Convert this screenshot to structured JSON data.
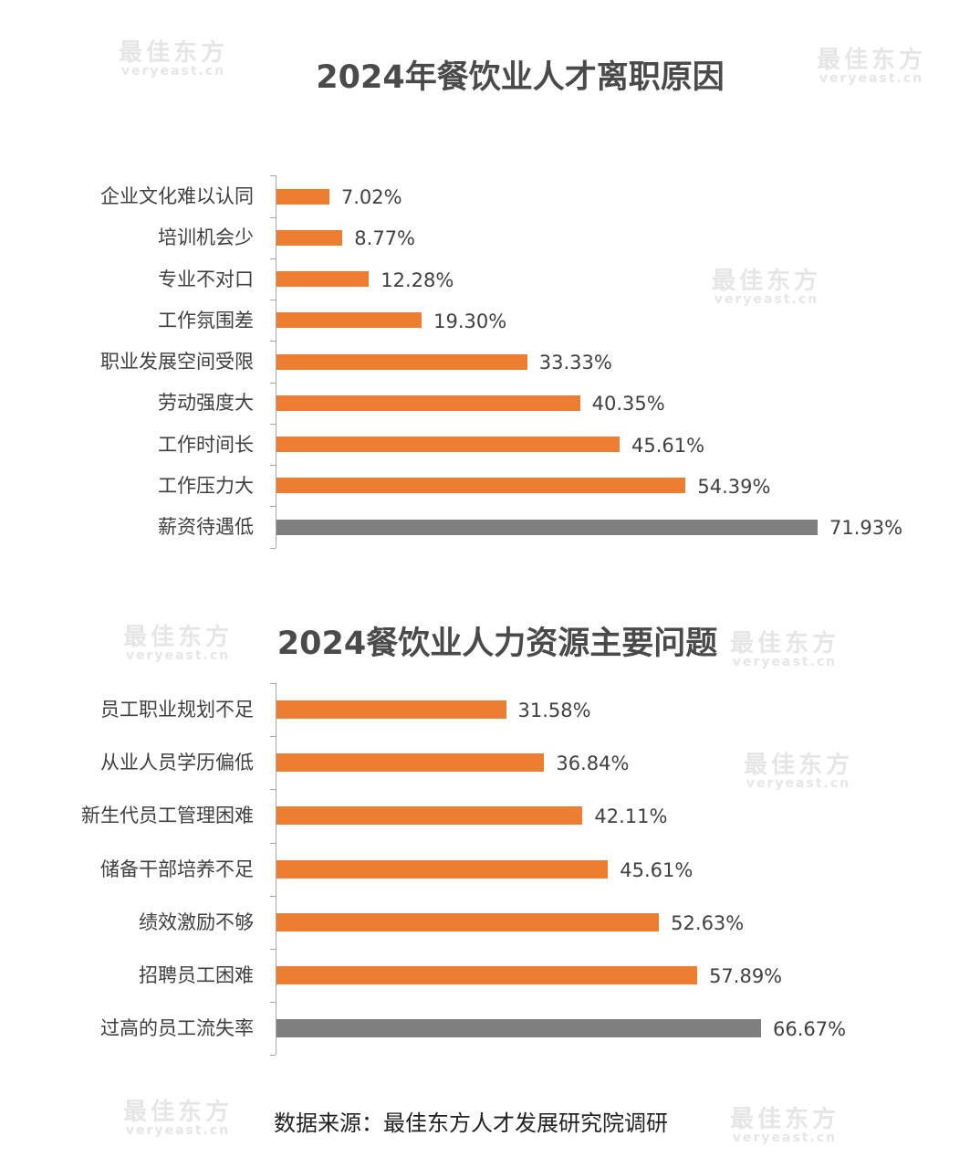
{
  "watermark": {
    "cn": "最佳东方",
    "en": "veryeast.cn"
  },
  "colors": {
    "primary_bar": "#ED7D31",
    "highlight_bar": "#7F7F7F",
    "text": "#404040",
    "axis": "#A6A6A6"
  },
  "chart_data": [
    {
      "type": "bar",
      "orientation": "horizontal",
      "title": "2024年餐饮业人才离职原因",
      "unit": "%",
      "categories": [
        "企业文化难以认同",
        "培训机会少",
        "专业不对口",
        "工作氛围差",
        "职业发展空间受限",
        "劳动强度大",
        "工作时间长",
        "工作压力大",
        "薪资待遇低"
      ],
      "values": [
        7.02,
        8.77,
        12.28,
        19.3,
        33.33,
        40.35,
        45.61,
        54.39,
        71.93
      ],
      "labels": [
        "7.02%",
        "8.77%",
        "12.28%",
        "19.30%",
        "33.33%",
        "40.35%",
        "45.61%",
        "54.39%",
        "71.93%"
      ],
      "highlight_index": 8,
      "xlim": [
        0,
        71.93
      ],
      "grid": false
    },
    {
      "type": "bar",
      "orientation": "horizontal",
      "title": "2024餐饮业人力资源主要问题",
      "unit": "%",
      "categories": [
        "员工职业规划不足",
        "从业人员学历偏低",
        "新生代员工管理困难",
        "储备干部培养不足",
        "绩效激励不够",
        "招聘员工困难",
        "过高的员工流失率"
      ],
      "values": [
        31.58,
        36.84,
        42.11,
        45.61,
        52.63,
        57.89,
        66.67
      ],
      "labels": [
        "31.58%",
        "36.84%",
        "42.11%",
        "45.61%",
        "52.63%",
        "57.89%",
        "66.67%"
      ],
      "highlight_index": 6,
      "xlim": [
        0,
        66.67
      ],
      "grid": false
    }
  ],
  "source": "数据来源：最佳东方人才发展研究院调研"
}
